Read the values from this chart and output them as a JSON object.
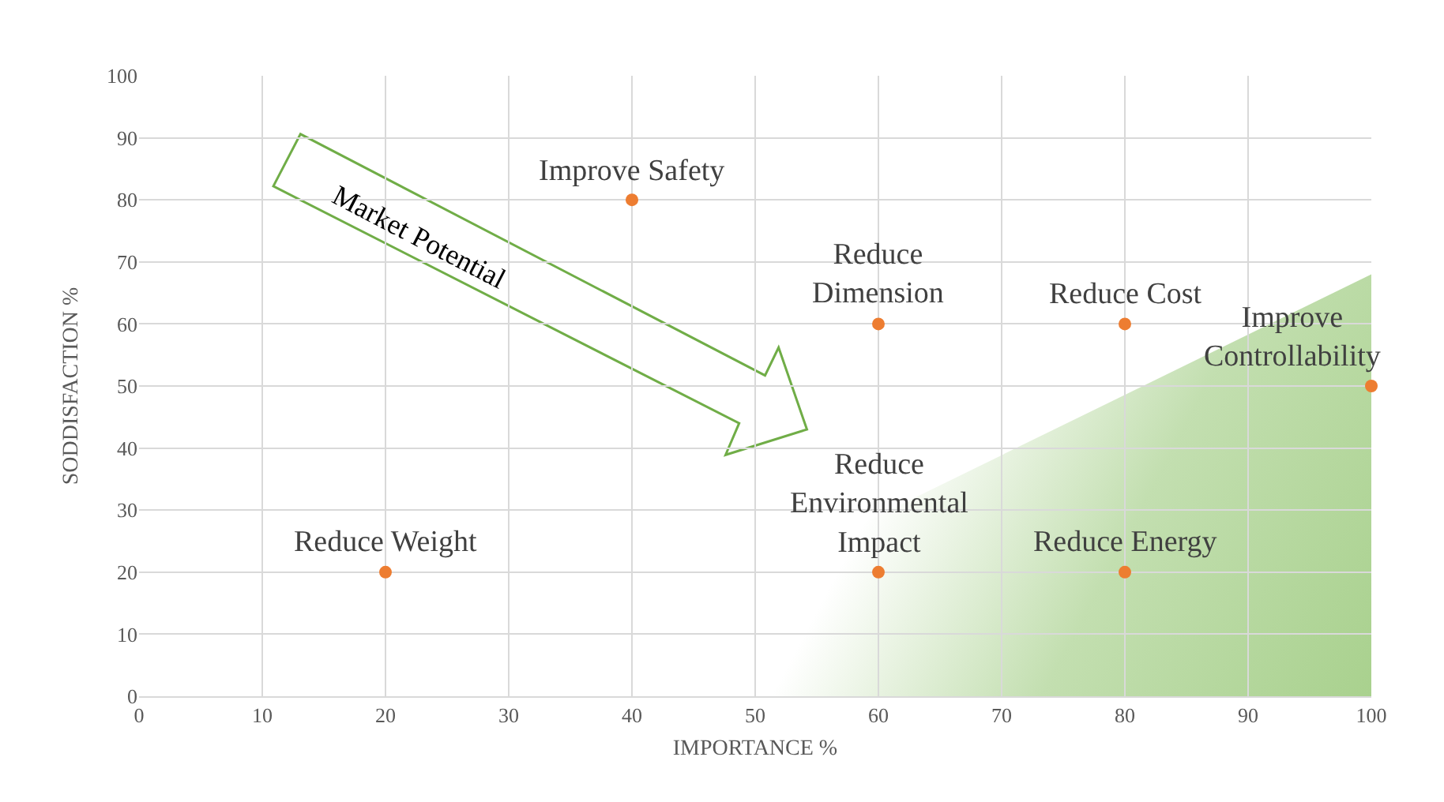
{
  "chart_data": {
    "type": "scatter",
    "xlabel": "IMPORTANCE %",
    "ylabel": "SODDISFACTION %",
    "x": [
      20,
      40,
      60,
      80,
      100,
      60,
      80
    ],
    "values": [
      20,
      80,
      60,
      60,
      50,
      20,
      20
    ],
    "color": "#ed7d31",
    "marker": "circle",
    "xlim": [
      0,
      100
    ],
    "ylim": [
      0,
      100
    ],
    "xticks": [
      0,
      10,
      20,
      30,
      40,
      50,
      60,
      70,
      80,
      90,
      100
    ],
    "yticks": [
      0,
      10,
      20,
      30,
      40,
      50,
      60,
      70,
      80,
      90,
      100
    ],
    "grid": true,
    "annotations": [
      {
        "text": "Reduce Weight",
        "x": 20,
        "y": 20
      },
      {
        "text": "Improve Safety",
        "x": 40,
        "y": 80
      },
      {
        "text": "Reduce\nDimension",
        "x": 60,
        "y": 60
      },
      {
        "text": "Reduce Cost",
        "x": 80,
        "y": 60
      },
      {
        "text": "Improve\nControllability",
        "x": 100,
        "y": 50
      },
      {
        "text": "Reduce\nEnvironmental\nImpact",
        "x": 60,
        "y": 20
      },
      {
        "text": "Reduce Energy",
        "x": 80,
        "y": 20
      },
      "Market Potential"
    ]
  }
}
